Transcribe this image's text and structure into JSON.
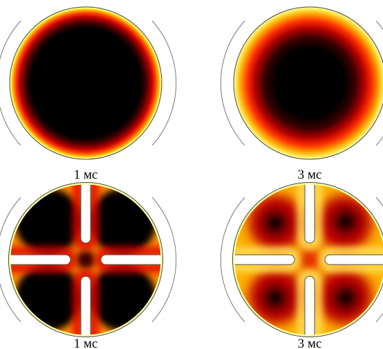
{
  "panels": [
    {
      "caption": "1 мс",
      "variant": "solid"
    },
    {
      "caption": "3 мс",
      "variant": "solid"
    },
    {
      "caption": "1 мс",
      "variant": "slotted"
    },
    {
      "caption": "3 мс",
      "variant": "slotted"
    }
  ],
  "colormap": {
    "stops": [
      "#000000",
      "#5a0000",
      "#c80000",
      "#ff5a00",
      "#ffc800",
      "#ffff80",
      "#ffffff"
    ]
  }
}
